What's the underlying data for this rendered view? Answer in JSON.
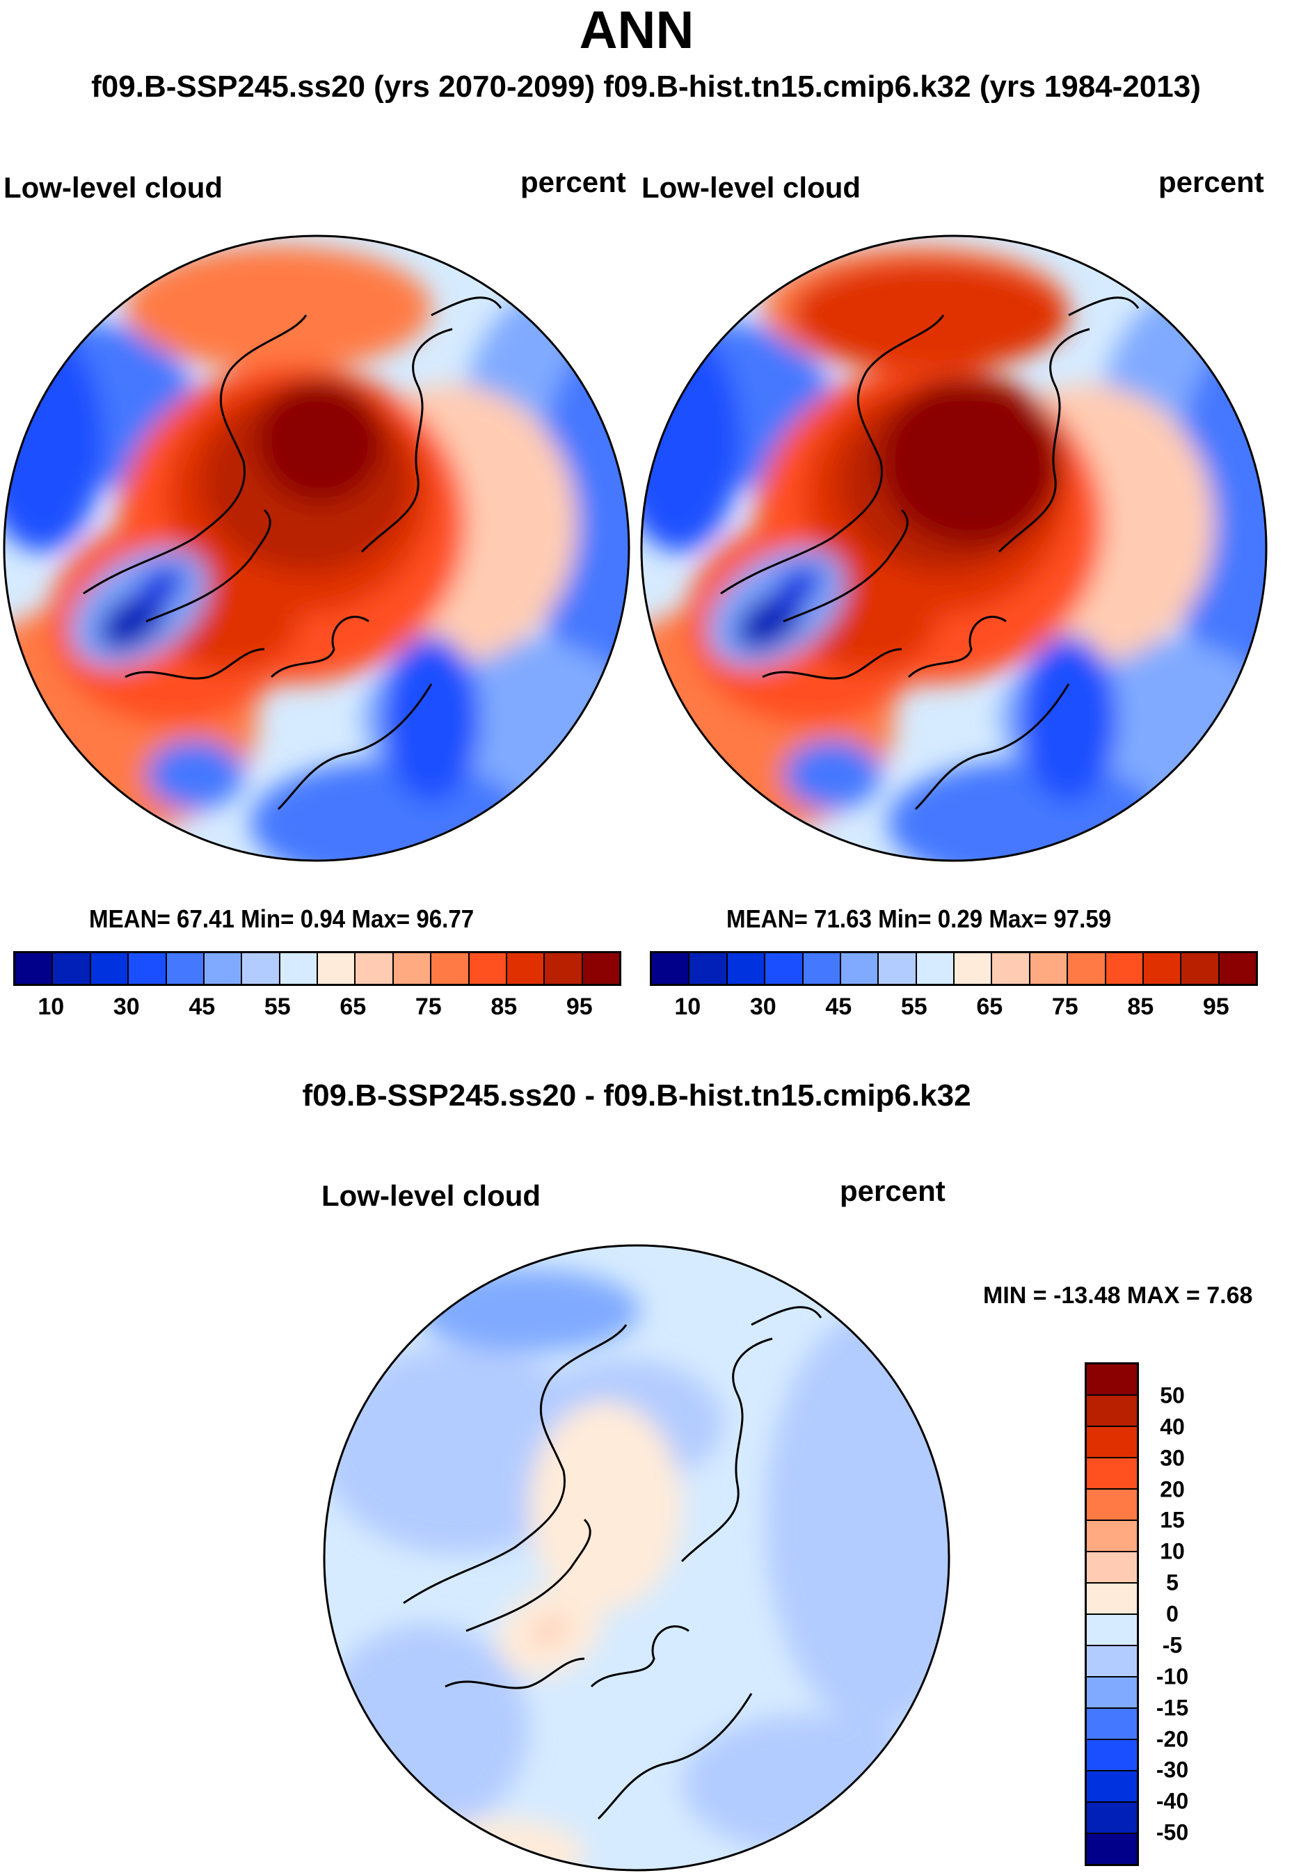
{
  "title": "ANN",
  "subtitle": "f09.B-SSP245.ss20 (yrs 2070-2099)  f09.B-hist.tn15.cmip6.k32 (yrs 1984-2013)",
  "panels": [
    {
      "variable": "Low-level cloud",
      "units": "percent",
      "stats": "MEAN=  67.41  Min=   0.94  Max=  96.77"
    },
    {
      "variable": "Low-level cloud",
      "units": "percent",
      "stats": "MEAN=  71.63  Min=   0.29  Max=  97.59"
    }
  ],
  "diff": {
    "title": "f09.B-SSP245.ss20 - f09.B-hist.tn15.cmip6.k32",
    "variable": "Low-level cloud",
    "units": "percent",
    "stats": "MIN = -13.48 MAX =    7.68"
  },
  "colorbar": {
    "colors": [
      "#00008b",
      "#0020b8",
      "#0033e0",
      "#1a4fff",
      "#4478ff",
      "#80aaff",
      "#b3ccff",
      "#d6ebff",
      "#ffebd9",
      "#ffccb3",
      "#ffaa80",
      "#ff7a45",
      "#ff5020",
      "#e03000",
      "#b82000",
      "#8b0000"
    ],
    "labels": [
      "10",
      "30",
      "45",
      "55",
      "65",
      "75",
      "85",
      "95"
    ]
  },
  "diff_colorbar": {
    "colors": [
      "#8b0000",
      "#b82000",
      "#e03000",
      "#ff5020",
      "#ff7a45",
      "#ffaa80",
      "#ffccb3",
      "#ffebd9",
      "#d6ebff",
      "#b3ccff",
      "#80aaff",
      "#4478ff",
      "#1a4fff",
      "#0033e0",
      "#0020b8",
      "#00008b"
    ],
    "labels": [
      "50",
      "40",
      "30",
      "20",
      "15",
      "10",
      "5",
      "0",
      "-5",
      "-10",
      "-15",
      "-20",
      "-30",
      "-40",
      "-50"
    ]
  }
}
